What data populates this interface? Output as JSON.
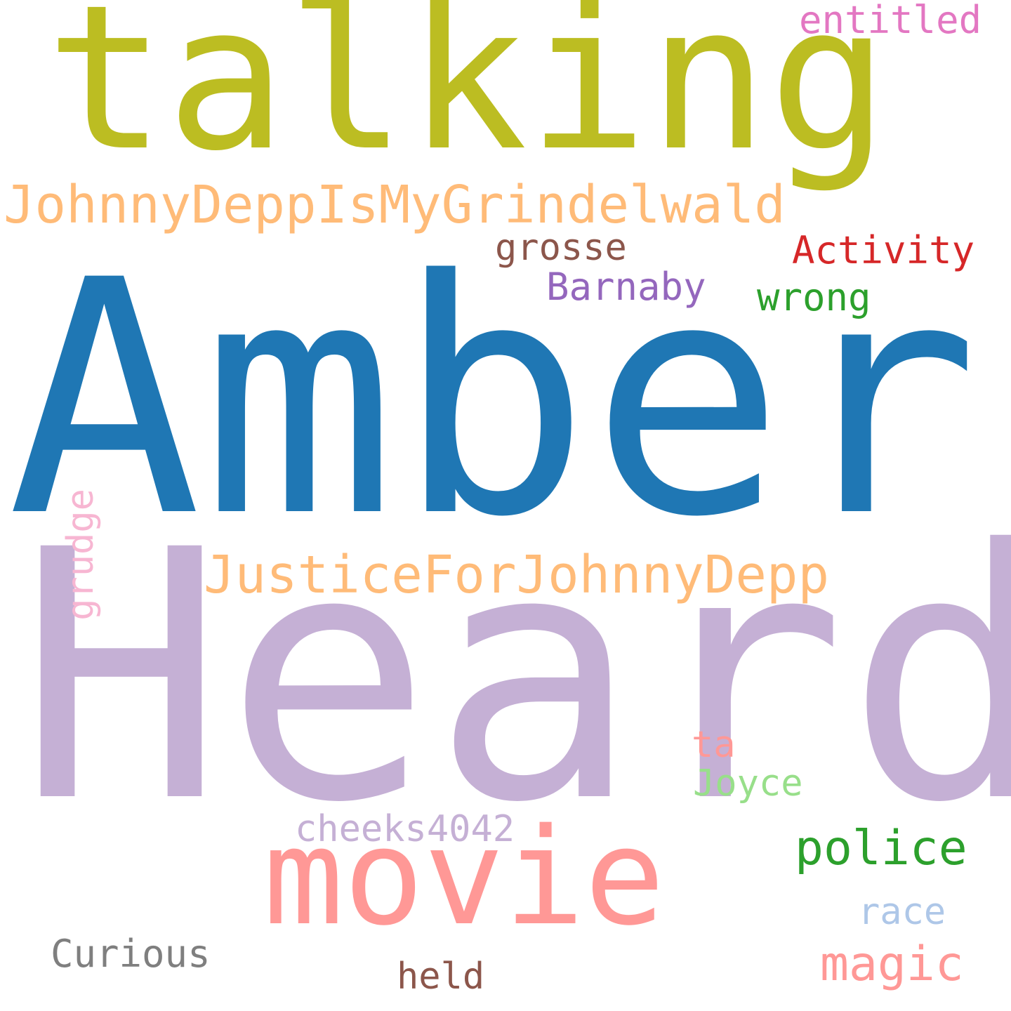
{
  "cloud": {
    "words": [
      {
        "key": "heard",
        "text": "Heard",
        "color": "#c5b0d5"
      },
      {
        "key": "amber",
        "text": "Amber",
        "color": "#1f77b4"
      },
      {
        "key": "talking",
        "text": "talking",
        "color": "#bcbd22"
      },
      {
        "key": "movie",
        "text": "movie",
        "color": "#ff9896"
      },
      {
        "key": "johnnydeppismygrindelwald",
        "text": "JohnnyDeppIsMyGrindelwald",
        "color": "#ffbb78"
      },
      {
        "key": "justiceforjohnnydepp",
        "text": "JusticeForJohnnyDepp",
        "color": "#ffbb78"
      },
      {
        "key": "police",
        "text": "police",
        "color": "#2ca02c"
      },
      {
        "key": "magic",
        "text": "magic",
        "color": "#ff9896"
      },
      {
        "key": "activity",
        "text": "Activity",
        "color": "#d62728"
      },
      {
        "key": "entitled",
        "text": "entitled",
        "color": "#e377c2"
      },
      {
        "key": "grosse",
        "text": "grosse",
        "color": "#8c564b"
      },
      {
        "key": "barnaby",
        "text": "Barnaby",
        "color": "#9467bd"
      },
      {
        "key": "wrong",
        "text": "wrong",
        "color": "#2ca02c"
      },
      {
        "key": "ta",
        "text": "ta",
        "color": "#ff9896"
      },
      {
        "key": "joyce",
        "text": "Joyce",
        "color": "#98df8a"
      },
      {
        "key": "cheeks4042",
        "text": "cheeks4042",
        "color": "#c5b0d5"
      },
      {
        "key": "race",
        "text": "race",
        "color": "#aec7e8"
      },
      {
        "key": "curious",
        "text": "Curious",
        "color": "#7f7f7f"
      },
      {
        "key": "held",
        "text": "held",
        "color": "#8c564b"
      },
      {
        "key": "grudge",
        "text": "grudge",
        "color": "#f7b6d2",
        "orientation": "vertical"
      }
    ]
  }
}
